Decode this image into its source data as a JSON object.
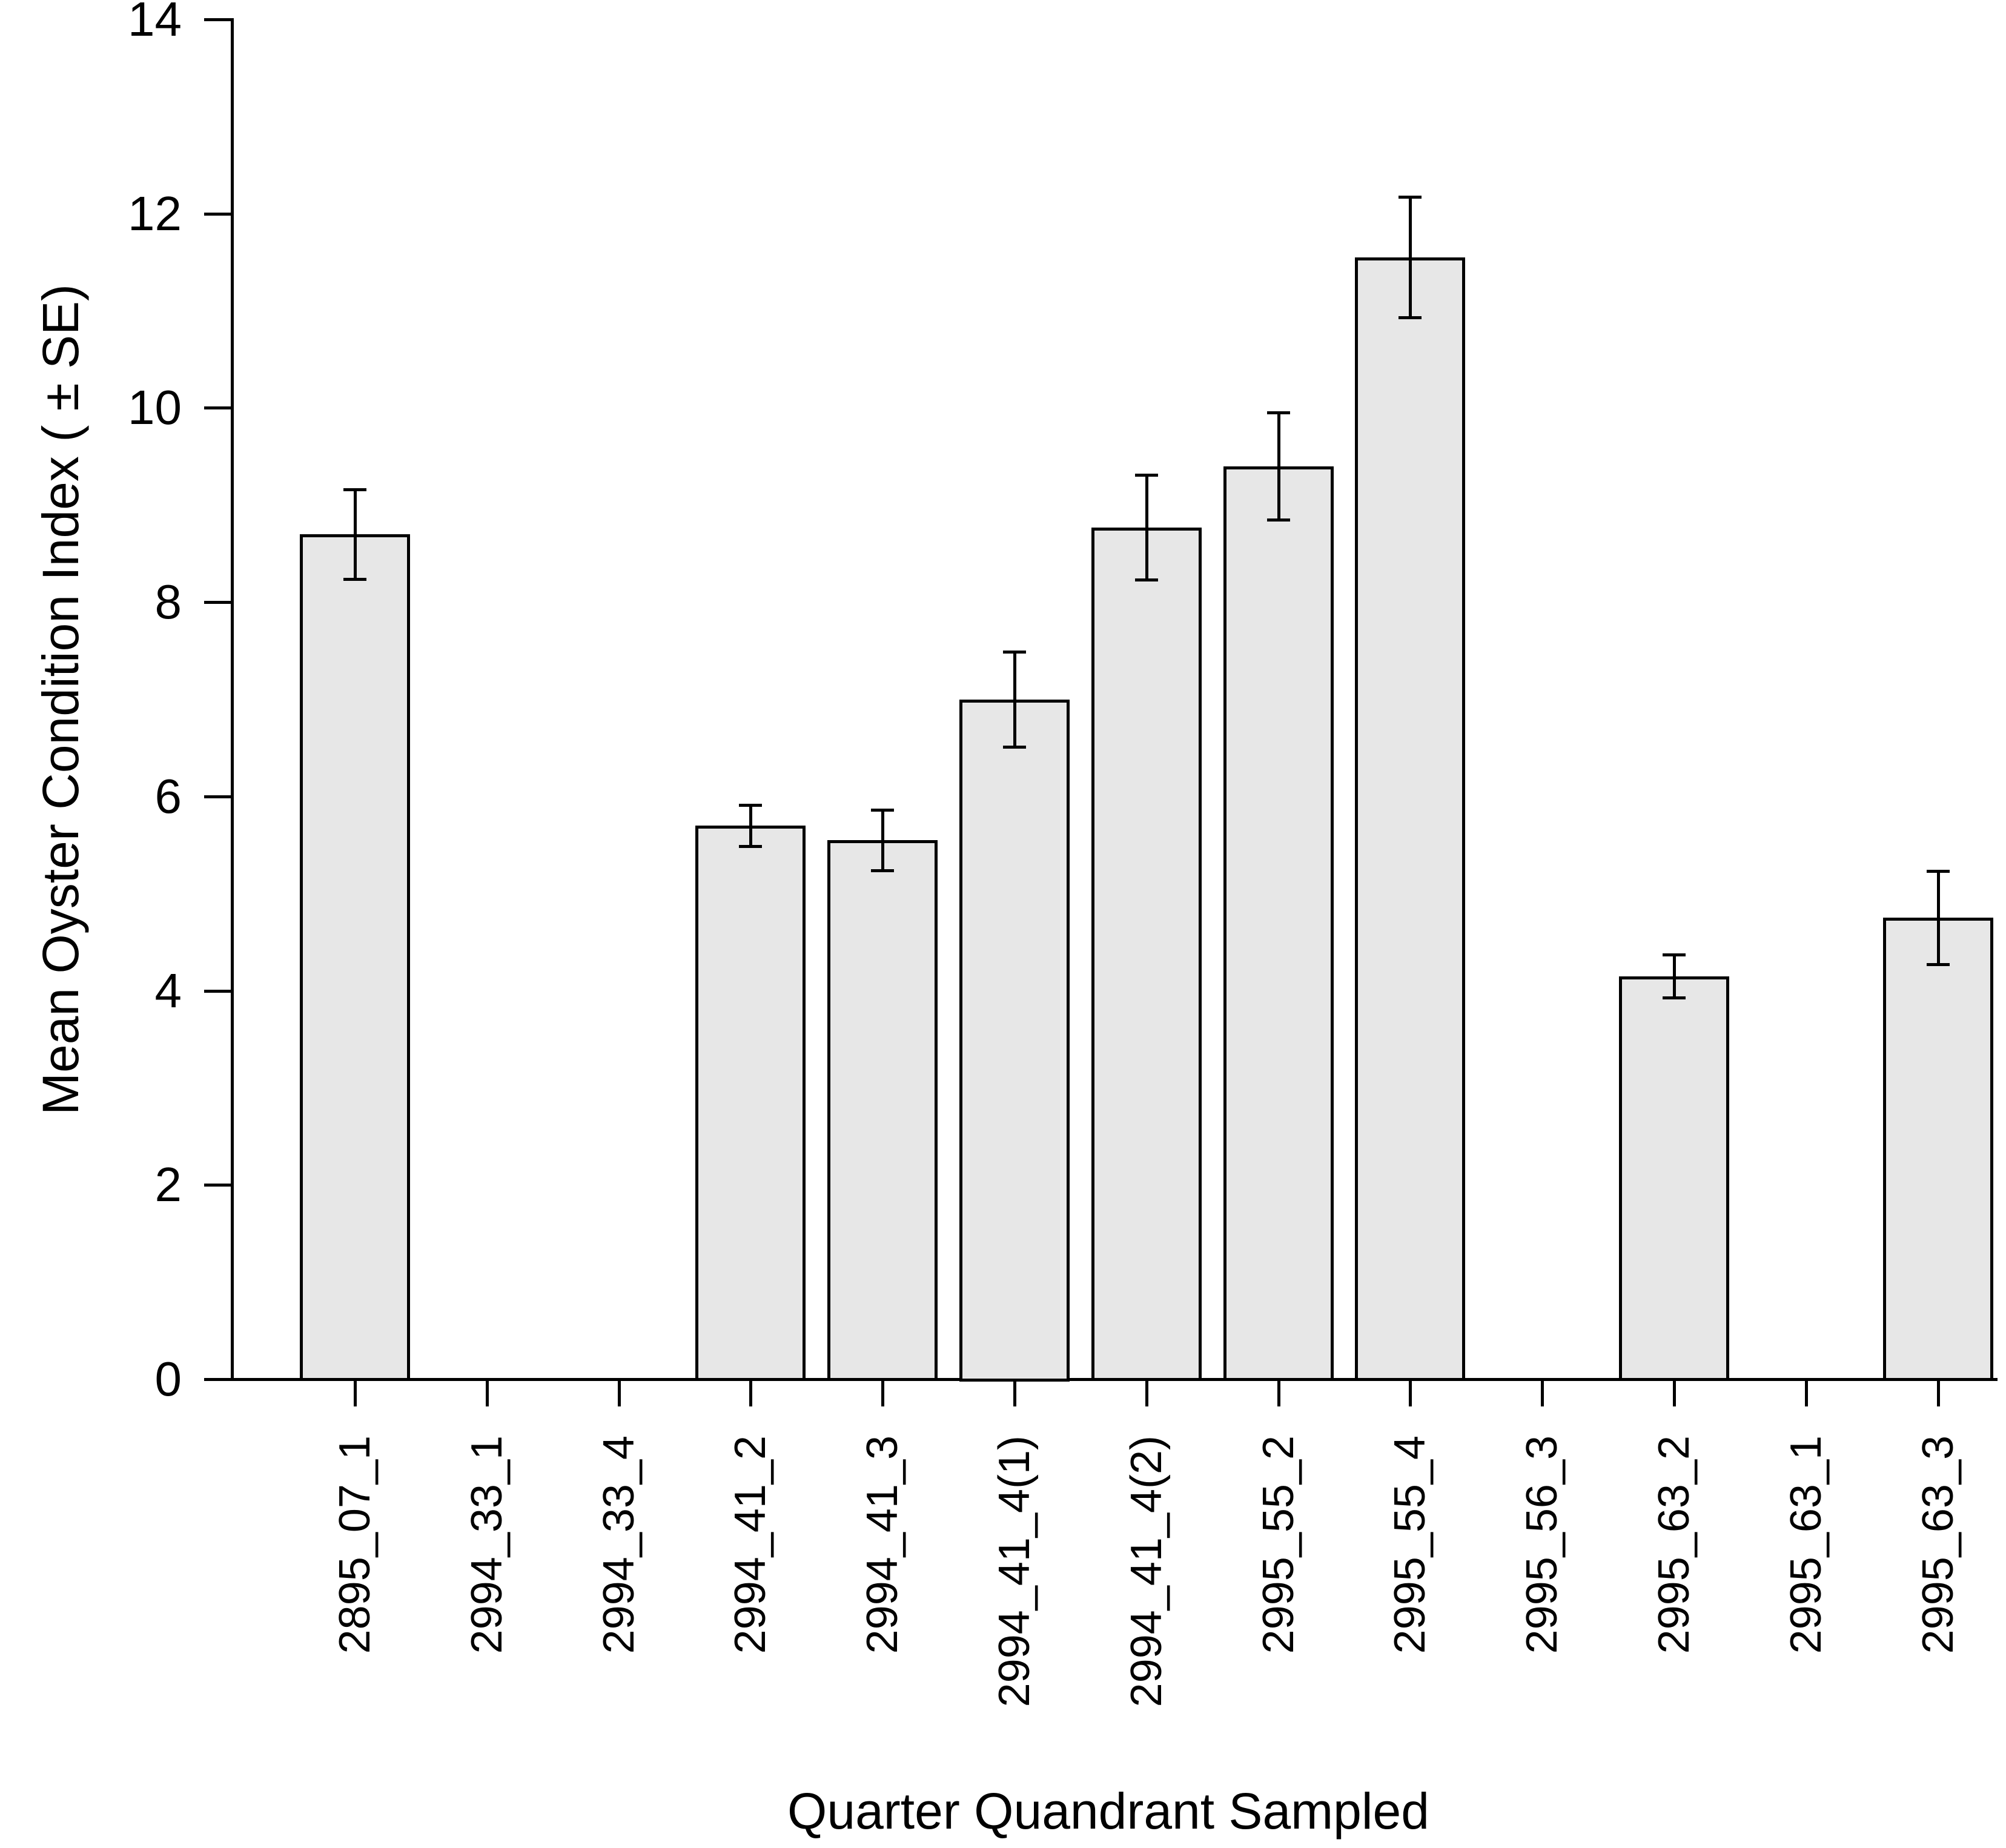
{
  "figure": {
    "background": "#ffffff",
    "axis_color": "#000000",
    "text_color": "#000000"
  },
  "chart_data": {
    "type": "bar",
    "title": "",
    "xlabel": "Quarter Quandrant Sampled",
    "ylabel": "Mean Oyster Condition Index ( ± SE)",
    "ylim": [
      0,
      14
    ],
    "yticks": [
      0,
      2,
      4,
      6,
      8,
      10,
      12,
      14
    ],
    "grid": false,
    "legend": null,
    "error_bars": true,
    "bar_fill": "#e7e7e7",
    "bar_border": "#000000",
    "error_bar_color": "#000000",
    "categories": [
      "2895_07_1",
      "2994_33_1",
      "2994_33_4",
      "2994_41_2",
      "2994_41_3",
      "2994_41_4(1)",
      "2994_41_4(2)",
      "2995_55_2",
      "2995_55_4",
      "2995_56_3",
      "2995_63_2",
      "2995_63_1",
      "2995_63_3"
    ],
    "values": [
      8.7,
      null,
      null,
      5.7,
      5.55,
      7.0,
      8.77,
      9.4,
      11.55,
      null,
      4.15,
      null,
      4.75
    ],
    "standard_errors": [
      0.46,
      null,
      null,
      0.21,
      0.31,
      0.49,
      0.54,
      0.55,
      0.62,
      null,
      0.22,
      null,
      0.48
    ]
  }
}
